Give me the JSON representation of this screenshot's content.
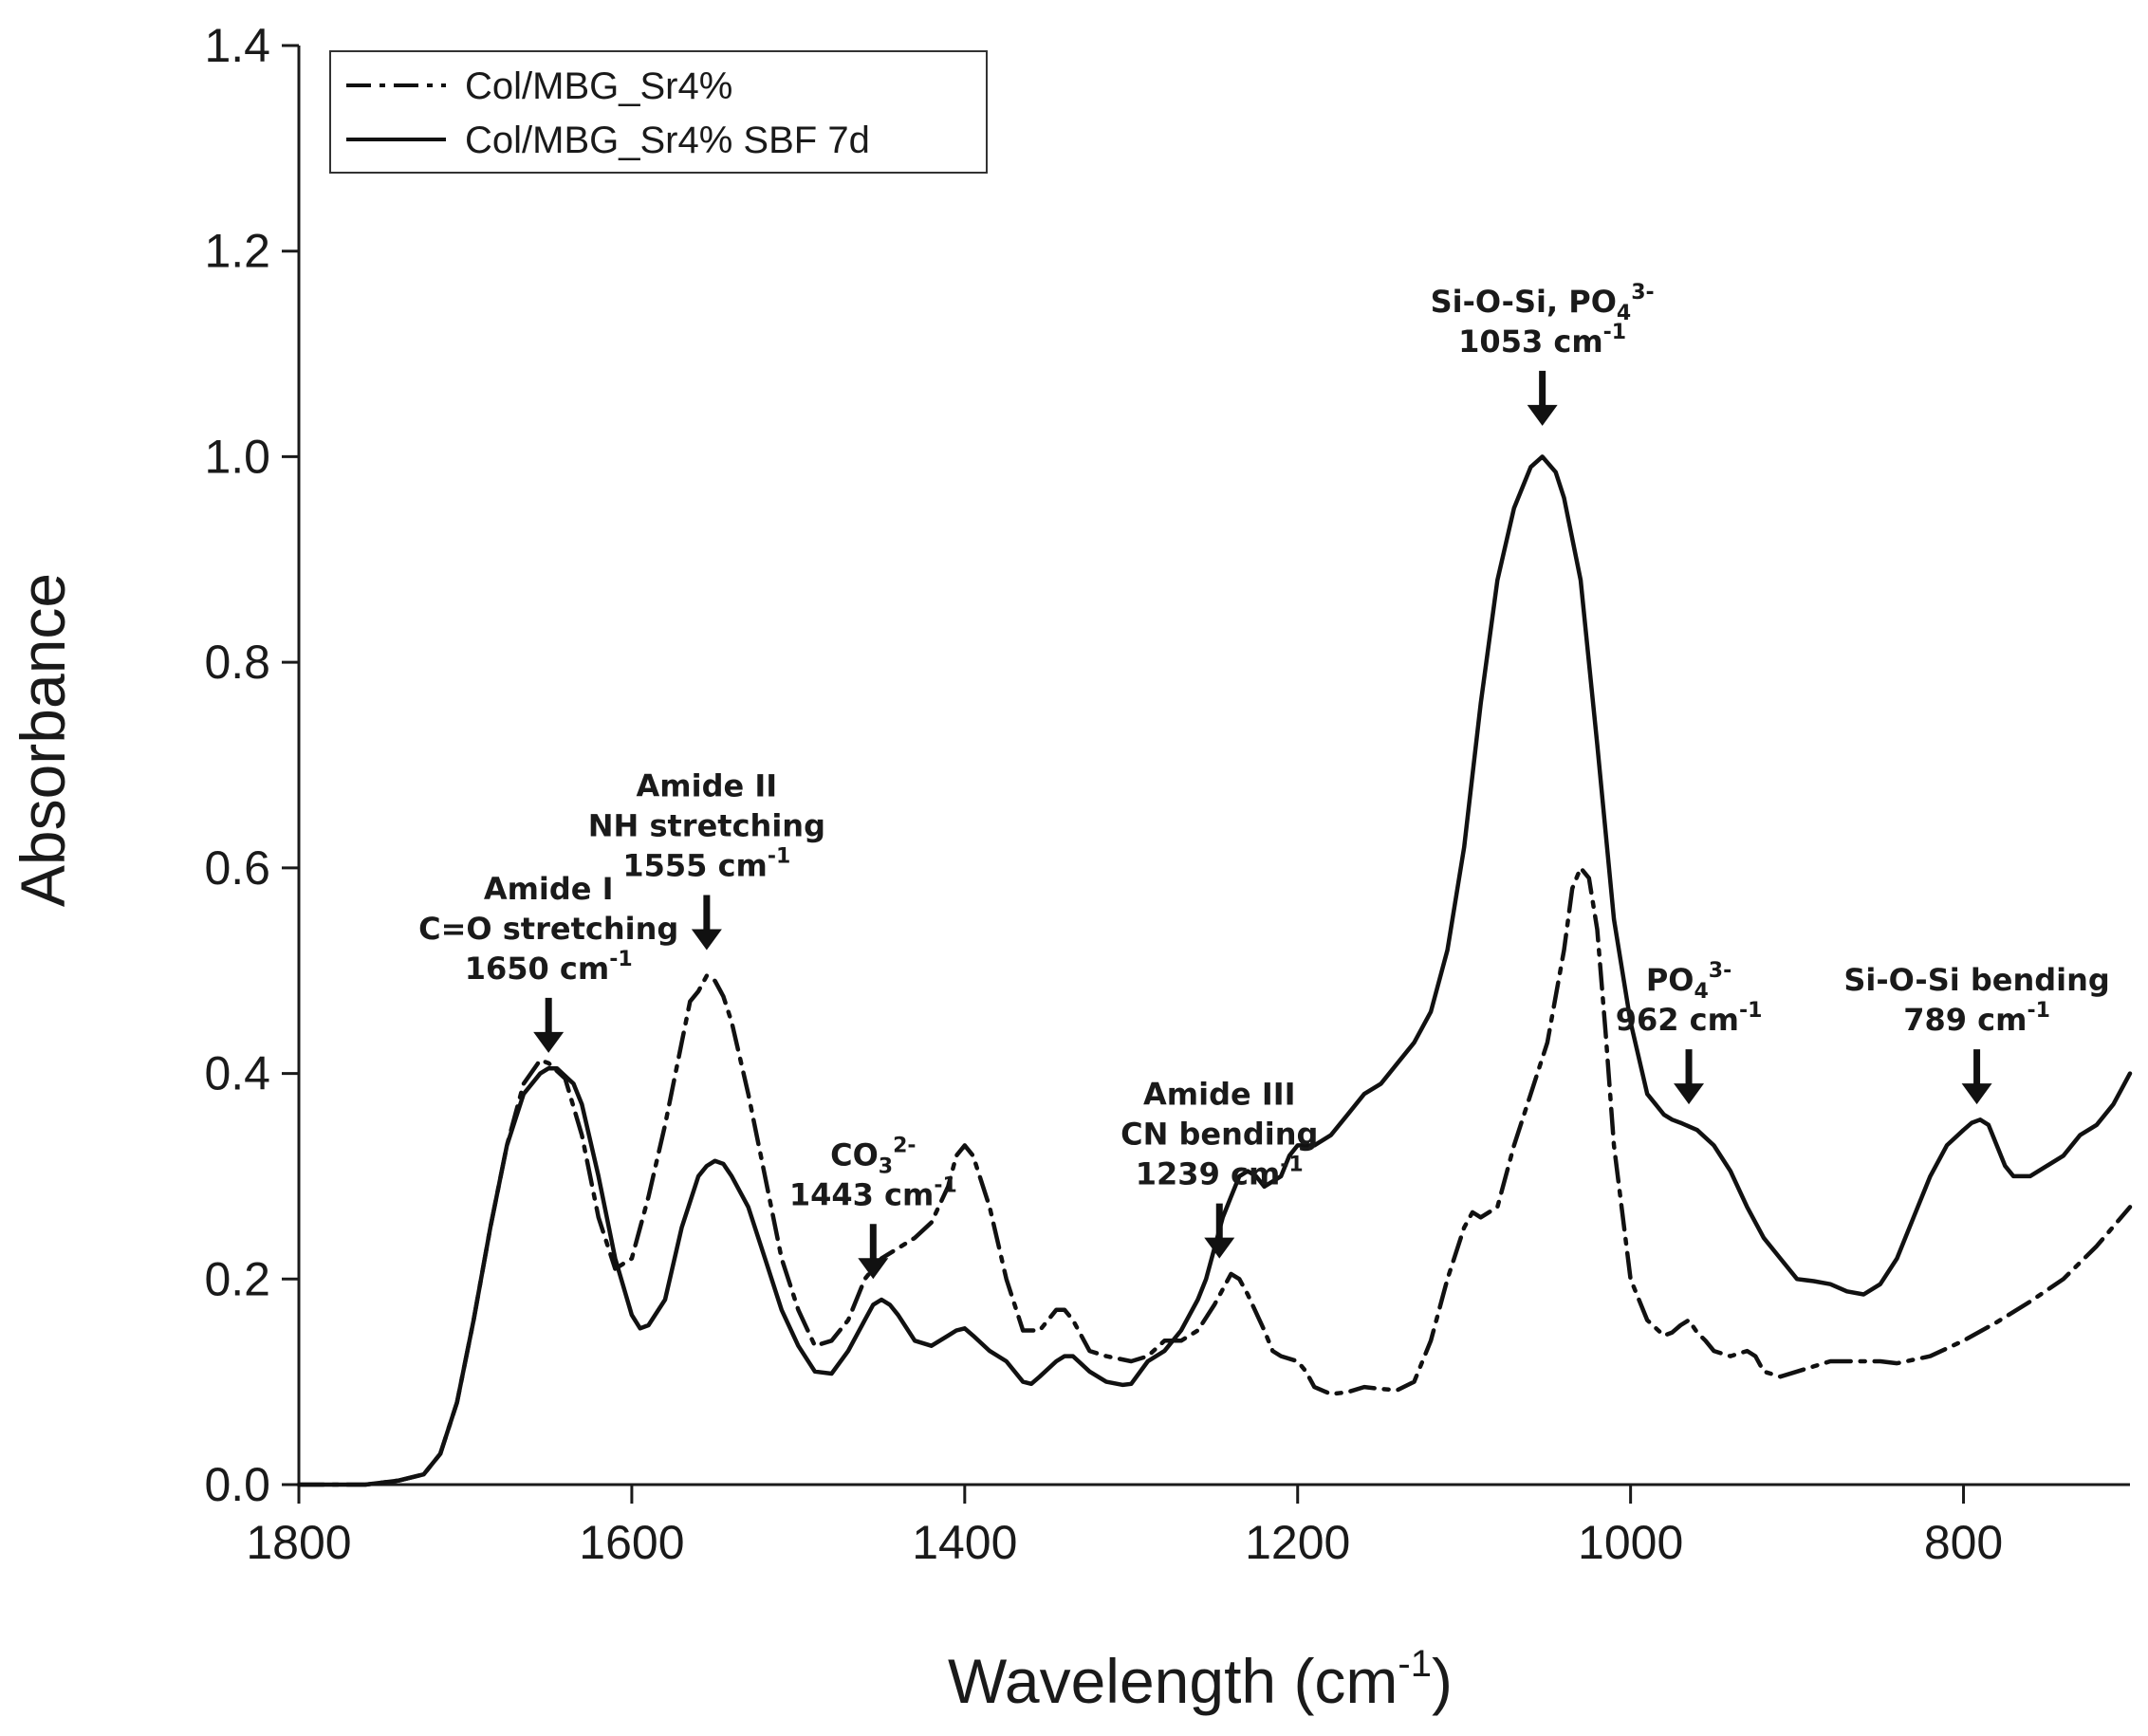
{
  "chart_data": {
    "type": "line",
    "title": "",
    "xlabel": "Wavelength (cm",
    "xlabel_sup": "-1",
    "xlabel_close": ")",
    "ylabel": "Absorbance",
    "xlim": [
      1800,
      700
    ],
    "ylim": [
      0,
      1.4
    ],
    "x_ticks": [
      1800,
      1600,
      1400,
      1200,
      1000,
      800
    ],
    "x_tick_labels": [
      "1800",
      "1600",
      "1400",
      "1200",
      "1000",
      "800"
    ],
    "y_ticks": [
      0,
      0.2,
      0.4,
      0.6,
      0.8,
      1.0,
      1.2,
      1.4
    ],
    "y_tick_labels": [
      "0.0",
      "0.2",
      "0.4",
      "0.6",
      "0.8",
      "1.0",
      "1.2",
      "1.4"
    ],
    "grid": false,
    "legend_position": "top-left",
    "series": [
      {
        "name": "Col/MBG_Sr4%",
        "style": "dash-dot",
        "color": "#111111",
        "x": [
          1800,
          1760,
          1740,
          1725,
          1715,
          1705,
          1695,
          1685,
          1675,
          1665,
          1655,
          1650,
          1640,
          1630,
          1620,
          1610,
          1600,
          1590,
          1580,
          1570,
          1565,
          1560,
          1555,
          1550,
          1545,
          1540,
          1530,
          1520,
          1510,
          1500,
          1490,
          1480,
          1470,
          1460,
          1450,
          1440,
          1430,
          1420,
          1410,
          1405,
          1400,
          1395,
          1385,
          1375,
          1365,
          1355,
          1345,
          1340,
          1335,
          1325,
          1315,
          1300,
          1290,
          1280,
          1270,
          1260,
          1250,
          1245,
          1240,
          1235,
          1230,
          1220,
          1215,
          1210,
          1200,
          1195,
          1190,
          1180,
          1170,
          1160,
          1150,
          1140,
          1130,
          1120,
          1110,
          1100,
          1095,
          1090,
          1080,
          1070,
          1060,
          1050,
          1040,
          1035,
          1030,
          1025,
          1020,
          1015,
          1010,
          1000,
          990,
          980,
          975,
          970,
          965,
          960,
          955,
          950,
          940,
          930,
          925,
          920,
          910,
          900,
          890,
          880,
          870,
          860,
          850,
          840,
          820,
          800,
          780,
          760,
          740,
          720,
          700
        ],
        "y": [
          0.0,
          0.0,
          0.004,
          0.01,
          0.03,
          0.08,
          0.16,
          0.25,
          0.33,
          0.39,
          0.413,
          0.41,
          0.395,
          0.34,
          0.26,
          0.21,
          0.22,
          0.28,
          0.35,
          0.43,
          0.47,
          0.48,
          0.495,
          0.49,
          0.475,
          0.45,
          0.38,
          0.3,
          0.22,
          0.17,
          0.135,
          0.14,
          0.16,
          0.2,
          0.22,
          0.23,
          0.24,
          0.255,
          0.29,
          0.32,
          0.33,
          0.32,
          0.27,
          0.2,
          0.15,
          0.15,
          0.17,
          0.17,
          0.16,
          0.13,
          0.125,
          0.12,
          0.125,
          0.14,
          0.14,
          0.15,
          0.175,
          0.19,
          0.205,
          0.2,
          0.185,
          0.15,
          0.13,
          0.125,
          0.12,
          0.11,
          0.095,
          0.088,
          0.09,
          0.095,
          0.093,
          0.092,
          0.1,
          0.14,
          0.2,
          0.25,
          0.265,
          0.26,
          0.27,
          0.33,
          0.38,
          0.43,
          0.52,
          0.58,
          0.6,
          0.59,
          0.54,
          0.44,
          0.33,
          0.2,
          0.16,
          0.145,
          0.148,
          0.155,
          0.16,
          0.148,
          0.14,
          0.13,
          0.125,
          0.13,
          0.125,
          0.11,
          0.105,
          0.11,
          0.115,
          0.12,
          0.12,
          0.12,
          0.12,
          0.118,
          0.125,
          0.14,
          0.158,
          0.178,
          0.2,
          0.232,
          0.27
        ]
      },
      {
        "name": "Col/MBG_Sr4% SBF 7d",
        "style": "solid",
        "color": "#111111",
        "x": [
          1800,
          1760,
          1740,
          1725,
          1715,
          1705,
          1695,
          1685,
          1675,
          1665,
          1655,
          1650,
          1645,
          1635,
          1630,
          1620,
          1610,
          1600,
          1595,
          1590,
          1580,
          1570,
          1560,
          1555,
          1550,
          1545,
          1540,
          1530,
          1520,
          1510,
          1500,
          1490,
          1480,
          1470,
          1460,
          1455,
          1450,
          1445,
          1440,
          1430,
          1420,
          1410,
          1405,
          1400,
          1395,
          1385,
          1375,
          1365,
          1360,
          1355,
          1345,
          1340,
          1335,
          1325,
          1315,
          1305,
          1300,
          1290,
          1280,
          1270,
          1260,
          1255,
          1250,
          1245,
          1240,
          1235,
          1230,
          1225,
          1220,
          1210,
          1205,
          1200,
          1190,
          1180,
          1170,
          1160,
          1150,
          1140,
          1130,
          1120,
          1110,
          1100,
          1090,
          1080,
          1070,
          1060,
          1053,
          1045,
          1040,
          1030,
          1020,
          1010,
          1000,
          990,
          985,
          980,
          975,
          970,
          960,
          950,
          940,
          930,
          920,
          910,
          900,
          890,
          880,
          870,
          860,
          850,
          840,
          830,
          820,
          810,
          800,
          795,
          790,
          785,
          780,
          775,
          770,
          760,
          750,
          740,
          730,
          720,
          710,
          700
        ],
        "y": [
          0.0,
          0.0,
          0.004,
          0.01,
          0.03,
          0.08,
          0.16,
          0.25,
          0.33,
          0.38,
          0.4,
          0.405,
          0.405,
          0.39,
          0.37,
          0.3,
          0.22,
          0.165,
          0.152,
          0.155,
          0.18,
          0.25,
          0.3,
          0.31,
          0.315,
          0.312,
          0.3,
          0.27,
          0.22,
          0.17,
          0.135,
          0.11,
          0.108,
          0.13,
          0.16,
          0.175,
          0.18,
          0.175,
          0.165,
          0.14,
          0.135,
          0.145,
          0.15,
          0.152,
          0.145,
          0.13,
          0.12,
          0.1,
          0.098,
          0.105,
          0.12,
          0.125,
          0.125,
          0.11,
          0.1,
          0.097,
          0.098,
          0.12,
          0.13,
          0.15,
          0.18,
          0.2,
          0.23,
          0.26,
          0.28,
          0.3,
          0.305,
          0.3,
          0.29,
          0.3,
          0.32,
          0.33,
          0.33,
          0.34,
          0.36,
          0.38,
          0.39,
          0.41,
          0.43,
          0.46,
          0.52,
          0.62,
          0.76,
          0.88,
          0.95,
          0.99,
          1.0,
          0.985,
          0.96,
          0.88,
          0.72,
          0.55,
          0.45,
          0.38,
          0.37,
          0.36,
          0.355,
          0.352,
          0.345,
          0.33,
          0.305,
          0.27,
          0.24,
          0.22,
          0.2,
          0.198,
          0.195,
          0.188,
          0.185,
          0.195,
          0.22,
          0.26,
          0.3,
          0.33,
          0.345,
          0.352,
          0.355,
          0.35,
          0.33,
          0.31,
          0.3,
          0.3,
          0.31,
          0.32,
          0.34,
          0.35,
          0.37,
          0.4
        ]
      }
    ],
    "annotations": [
      {
        "lines": [
          {
            "t": "Amide I"
          },
          {
            "t": "C=O  stretching"
          },
          {
            "t": "1650 cm",
            "sup": "-1"
          }
        ],
        "x": 1650,
        "y": 0.42
      },
      {
        "lines": [
          {
            "t": "Amide II"
          },
          {
            "t": "NH  stretching"
          },
          {
            "t": "1555 cm",
            "sup": "-1"
          }
        ],
        "x": 1555,
        "y": 0.52
      },
      {
        "lines": [
          {
            "t": "CO",
            "sub": "3",
            "sup": "2-"
          },
          {
            "t": "1443 cm",
            "sup": "-1"
          }
        ],
        "x": 1455,
        "y": 0.2
      },
      {
        "lines": [
          {
            "t": "Amide III"
          },
          {
            "t": "CN  bending"
          },
          {
            "t": "1239 cm",
            "sup": "-1"
          }
        ],
        "x": 1247,
        "y": 0.22
      },
      {
        "lines": [
          {
            "t": "Si-O-Si, PO",
            "sub": "4",
            "sup": "3-"
          },
          {
            "t": "1053 cm",
            "sup": "-1"
          }
        ],
        "x": 1053,
        "y": 1.03
      },
      {
        "lines": [
          {
            "t": "PO",
            "sub": "4",
            "sup": "3-"
          },
          {
            "t": "962 cm",
            "sup": "-1"
          }
        ],
        "x": 965,
        "y": 0.37
      },
      {
        "lines": [
          {
            "t": "Si-O-Si bending"
          },
          {
            "t": "789 cm",
            "sup": "-1"
          }
        ],
        "x": 792,
        "y": 0.37
      }
    ]
  }
}
